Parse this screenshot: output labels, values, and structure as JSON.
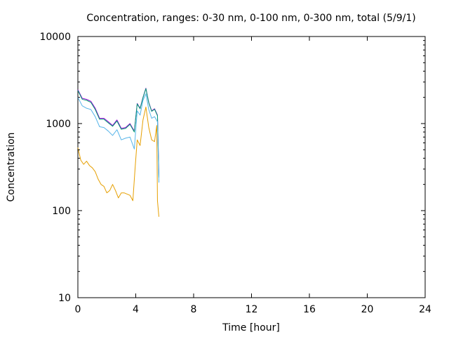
{
  "chart_data": {
    "type": "line",
    "title": "Concentration, ranges: 0-30 nm, 0-100 nm, 0-300 nm, total (5/9/1)",
    "xlabel": "Time [hour]",
    "ylabel": "Concentration",
    "xlim": [
      0,
      24
    ],
    "ylim": [
      10,
      10000
    ],
    "yscale": "log",
    "grid": false,
    "legend": "none",
    "xticks": [
      0,
      4,
      8,
      12,
      16,
      20,
      24
    ],
    "yticks": [
      10,
      100,
      1000,
      10000
    ],
    "xtick_labels": [
      "0",
      "4",
      "8",
      "12",
      "16",
      "20",
      "24"
    ],
    "ytick_labels": [
      "10",
      "100",
      "1000",
      "10000"
    ],
    "series": [
      {
        "color": "#9400d3",
        "x": [
          0.0,
          0.3,
          0.6,
          0.9,
          1.2,
          1.5,
          1.8,
          2.1,
          2.4,
          2.7,
          3.0,
          3.3,
          3.6,
          3.9,
          4.1,
          4.3,
          4.5,
          4.7,
          4.9,
          5.1,
          5.3,
          5.5,
          5.6
        ],
        "y": [
          2450,
          1950,
          1900,
          1800,
          1500,
          1150,
          1150,
          1050,
          950,
          1100,
          880,
          900,
          1000,
          820,
          1700,
          1500,
          2000,
          2550,
          1750,
          1400,
          1480,
          1250,
          250
        ]
      },
      {
        "color": "#009e73",
        "x": [
          0.0,
          0.3,
          0.6,
          0.9,
          1.2,
          1.5,
          1.8,
          2.1,
          2.4,
          2.7,
          3.0,
          3.3,
          3.6,
          3.9,
          4.1,
          4.3,
          4.5,
          4.7,
          4.9,
          5.1,
          5.3,
          5.5,
          5.6
        ],
        "y": [
          2400,
          1900,
          1850,
          1750,
          1450,
          1120,
          1120,
          1020,
          930,
          1070,
          860,
          880,
          980,
          800,
          1680,
          1480,
          1980,
          2520,
          1730,
          1380,
          1460,
          1230,
          240
        ]
      },
      {
        "color": "#56b4e9",
        "x": [
          0.0,
          0.3,
          0.6,
          0.9,
          1.2,
          1.5,
          1.8,
          2.1,
          2.4,
          2.7,
          3.0,
          3.3,
          3.6,
          3.9,
          4.1,
          4.3,
          4.5,
          4.7,
          4.9,
          5.1,
          5.3,
          5.5,
          5.6
        ],
        "y": [
          2000,
          1600,
          1500,
          1450,
          1200,
          920,
          900,
          820,
          730,
          850,
          650,
          680,
          700,
          510,
          1400,
          1250,
          1850,
          2200,
          1450,
          1150,
          1200,
          1050,
          210
        ]
      },
      {
        "color": "#e69f00",
        "x": [
          0.0,
          0.2,
          0.4,
          0.6,
          0.8,
          1.0,
          1.2,
          1.4,
          1.6,
          1.8,
          2.0,
          2.2,
          2.4,
          2.6,
          2.8,
          3.0,
          3.2,
          3.4,
          3.6,
          3.8,
          3.95,
          4.1,
          4.3,
          4.5,
          4.7,
          4.9,
          5.1,
          5.3,
          5.45,
          5.5,
          5.6
        ],
        "y": [
          530,
          380,
          340,
          370,
          330,
          310,
          280,
          230,
          200,
          190,
          160,
          170,
          200,
          170,
          140,
          160,
          160,
          155,
          150,
          130,
          300,
          650,
          560,
          1100,
          1550,
          900,
          650,
          620,
          950,
          130,
          85
        ]
      }
    ]
  }
}
